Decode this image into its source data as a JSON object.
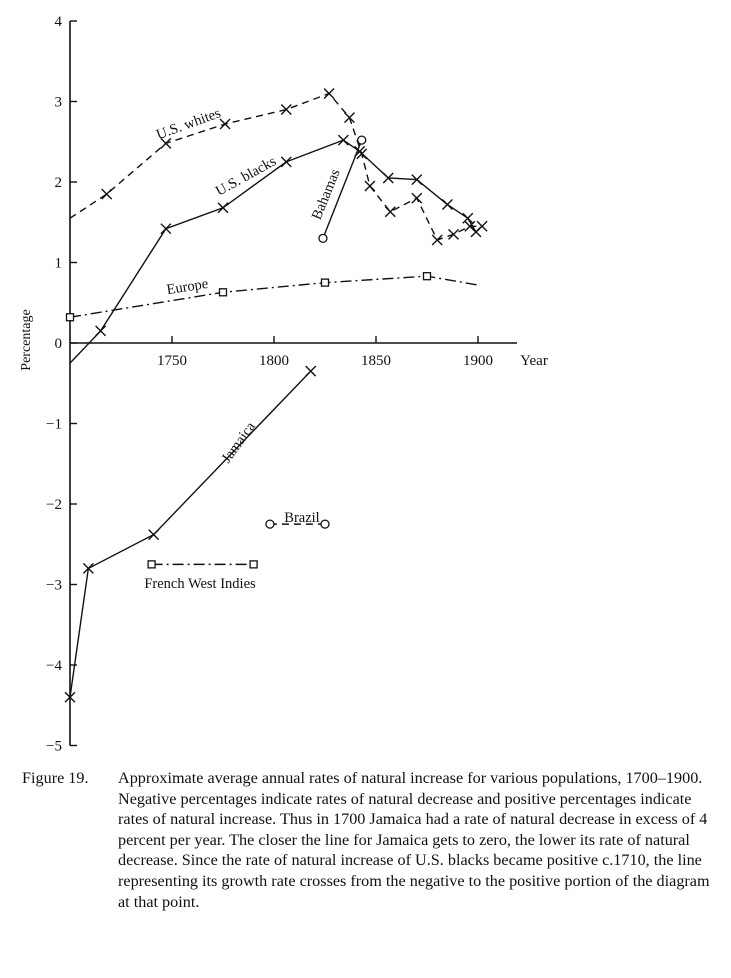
{
  "chart_data": {
    "type": "line",
    "xlabel": "Year",
    "ylabel": "Percentage",
    "xlim": [
      1700,
      1900
    ],
    "ylim": [
      -5,
      4
    ],
    "x_ticks": [
      "1750",
      "1800",
      "1850",
      "1900"
    ],
    "y_ticks": [
      "4",
      "3",
      "2",
      "1",
      "0",
      "−1",
      "−2",
      "−3",
      "−4",
      "−5"
    ],
    "series": [
      {
        "name": "U.S. whites",
        "line_style": "dashed",
        "marker": "x",
        "points": [
          [
            1700,
            1.55
          ],
          [
            1718,
            1.85
          ],
          [
            1747,
            2.48
          ],
          [
            1776,
            2.72
          ],
          [
            1806,
            2.9
          ],
          [
            1827,
            3.1
          ],
          [
            1837,
            2.8
          ],
          [
            1843,
            2.35
          ],
          [
            1847,
            1.95
          ],
          [
            1857,
            1.63
          ],
          [
            1870,
            1.8
          ],
          [
            1880,
            1.28
          ],
          [
            1888,
            1.35
          ],
          [
            1896,
            1.45
          ],
          [
            1902,
            1.45
          ]
        ]
      },
      {
        "name": "U.S. blacks",
        "line_style": "solid",
        "marker": "x",
        "points": [
          [
            1700,
            -0.25
          ],
          [
            1715,
            0.15
          ],
          [
            1747,
            1.42
          ],
          [
            1775,
            1.68
          ],
          [
            1806,
            2.25
          ],
          [
            1834,
            2.52
          ],
          [
            1842,
            2.38
          ],
          [
            1856,
            2.05
          ],
          [
            1870,
            2.03
          ],
          [
            1885,
            1.72
          ],
          [
            1895,
            1.55
          ],
          [
            1899,
            1.38
          ]
        ]
      },
      {
        "name": "Bahamas",
        "line_style": "solid",
        "marker": "circle",
        "points": [
          [
            1824,
            1.3
          ],
          [
            1843,
            2.52
          ]
        ]
      },
      {
        "name": "Europe",
        "line_style": "dash-dot",
        "marker": "square",
        "points": [
          [
            1700,
            0.32
          ],
          [
            1775,
            0.63
          ],
          [
            1825,
            0.75
          ],
          [
            1875,
            0.83
          ],
          [
            1900,
            0.72
          ]
        ]
      },
      {
        "name": "Jamaica",
        "line_style": "solid",
        "marker": "x",
        "points": [
          [
            1700,
            -4.4
          ],
          [
            1709,
            -2.8
          ],
          [
            1741,
            -2.38
          ],
          [
            1818,
            -0.35
          ]
        ]
      },
      {
        "name": "Brazil",
        "line_style": "dashed",
        "marker": "circle",
        "points": [
          [
            1798,
            -2.25
          ],
          [
            1825,
            -2.25
          ]
        ]
      },
      {
        "name": "French West Indies",
        "line_style": "dash-dot",
        "marker": "square",
        "points": [
          [
            1740,
            -2.75
          ],
          [
            1790,
            -2.75
          ]
        ]
      }
    ]
  },
  "caption": {
    "figure_label": "Figure 19.",
    "text": "Approximate average annual rates of natural increase for various populations, 1700–1900. Negative percentages indicate rates of natural decrease and positive percentages indicate rates of natural increase. Thus in 1700 Jamaica had a rate of natural decrease in excess of 4 percent per year. The closer the line for Jamaica gets to zero, the lower its rate of natural decrease. Since the rate of natural increase of U.S. blacks became positive c.1710, the line representing its growth rate crosses from the negative to the positive portion of the diagram at that point."
  }
}
